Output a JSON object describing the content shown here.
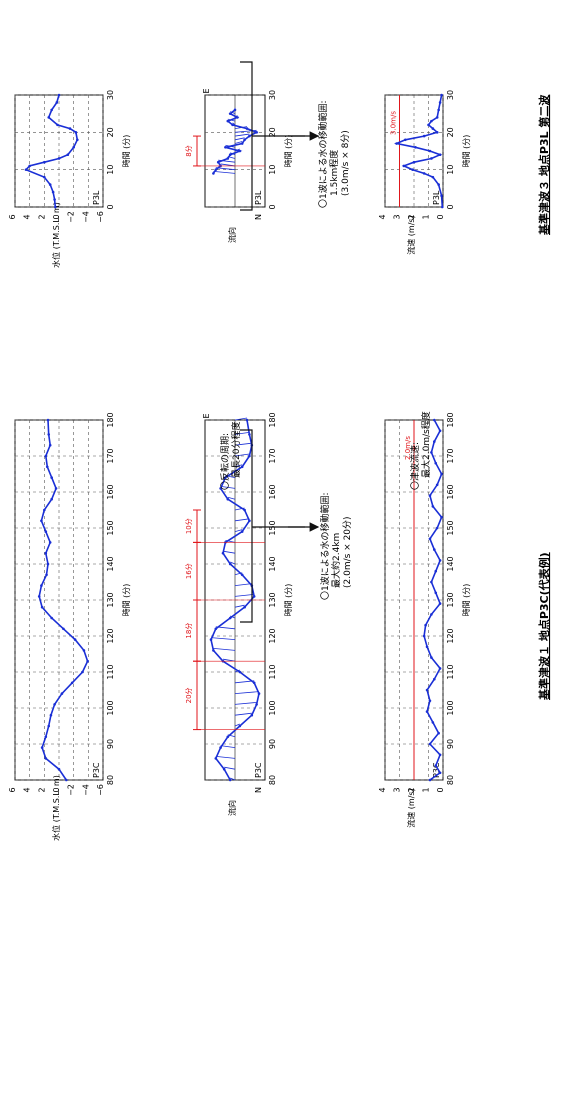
{
  "captions": {
    "case1": "基準津波１ 地点P3C(代表例)",
    "case3": "基準津波３ 地点P3L 第二波"
  },
  "notes": {
    "case1": {
      "reversal_1": "〇反転の周期:",
      "reversal_2": "最長20分程度",
      "speed_1": "〇津波流速:",
      "speed_2": "最大2.0m/s程度",
      "move_1": "〇1波による水の移動範囲:",
      "move_2": "最大約2.4km",
      "move_3": "(2.0m/s × 20分)"
    },
    "case3": {
      "move_1": "〇1波による水の移動範囲:",
      "move_2": "1.5km程度",
      "move_3": "(3.0m/s × 8分)"
    }
  },
  "colors": {
    "line": "#1a2fd6",
    "red": "#e0161b",
    "axis": "#111111",
    "grid": "#555555"
  },
  "chart_data": [
    {
      "id": "p3c-water-level",
      "type": "line",
      "title": "P3C",
      "xlabel": "時間 (分)",
      "ylabel": "水位 (T.M.S.L. m)",
      "xlim": [
        80,
        180
      ],
      "ylim": [
        -6,
        6
      ],
      "xticks": [
        80,
        90,
        100,
        110,
        120,
        130,
        140,
        150,
        160,
        170,
        180
      ],
      "yticks": [
        -6,
        -4,
        -2,
        0,
        2,
        4,
        6
      ],
      "x": [
        80,
        83,
        86,
        89,
        92,
        95,
        98,
        101,
        104,
        107,
        110,
        113,
        116,
        119,
        122,
        125,
        128,
        131,
        134,
        137,
        140,
        143,
        146,
        149,
        152,
        155,
        158,
        161,
        164,
        167,
        170,
        173,
        176,
        180
      ],
      "y": [
        -1.0,
        0.0,
        1.8,
        2.3,
        1.8,
        1.4,
        1.1,
        0.6,
        -0.4,
        -1.8,
        -3.2,
        -3.9,
        -3.4,
        -2.2,
        -0.6,
        1.0,
        2.3,
        2.7,
        2.4,
        1.7,
        1.5,
        1.8,
        1.2,
        1.8,
        2.4,
        2.0,
        1.0,
        0.4,
        1.0,
        1.6,
        1.8,
        1.2,
        1.4,
        1.5
      ]
    },
    {
      "id": "p3c-flow-direction",
      "type": "line",
      "title": "P3C",
      "xlabel": "時間 (分)",
      "ylabel": "流向",
      "xlim": [
        80,
        180
      ],
      "xticks": [
        80,
        90,
        100,
        110,
        120,
        130,
        140,
        150,
        160,
        170,
        180
      ],
      "yticklabels": [
        "N",
        "E"
      ],
      "x": [
        80,
        83,
        86,
        89,
        92,
        95,
        98,
        101,
        104,
        107,
        110,
        113,
        116,
        119,
        122,
        125,
        128,
        131,
        134,
        137,
        140,
        143,
        146,
        149,
        152,
        155,
        158,
        161,
        164,
        167,
        170,
        173,
        176,
        180
      ],
      "y": [
        0.2,
        0.45,
        0.8,
        0.6,
        0.3,
        -0.2,
        -0.7,
        -0.9,
        -1.0,
        -0.8,
        -0.2,
        0.5,
        0.9,
        1.0,
        0.8,
        0.2,
        -0.4,
        -0.8,
        -0.7,
        -0.3,
        0.2,
        0.5,
        0.4,
        -0.3,
        -0.6,
        -0.4,
        0.3,
        0.6,
        0.4,
        -0.3,
        -0.6,
        -0.7,
        -0.6,
        -0.5
      ],
      "annotations": [
        "20分",
        "18分",
        "16分",
        "10分"
      ],
      "annotation_spans": [
        [
          94,
          113
        ],
        [
          113,
          130
        ],
        [
          130,
          146
        ],
        [
          146,
          155
        ]
      ]
    },
    {
      "id": "p3c-flow-speed",
      "type": "line",
      "title": "P3C",
      "xlabel": "時間 (分)",
      "ylabel": "流速 (m/s)",
      "xlim": [
        80,
        180
      ],
      "ylim": [
        0,
        4
      ],
      "xticks": [
        80,
        90,
        100,
        110,
        120,
        130,
        140,
        150,
        160,
        170,
        180
      ],
      "yticks": [
        0,
        1,
        2,
        3,
        4
      ],
      "threshold": 2.0,
      "threshold_label": "2.0m/s",
      "x": [
        80,
        82,
        84,
        87,
        90,
        93,
        96,
        99,
        102,
        105,
        108,
        111,
        114,
        117,
        120,
        123,
        126,
        129,
        132,
        135,
        138,
        141,
        144,
        147,
        150,
        153,
        156,
        159,
        162,
        165,
        168,
        171,
        174,
        177,
        180
      ],
      "y": [
        0.9,
        0.2,
        0.5,
        0.2,
        0.9,
        0.3,
        0.7,
        1.1,
        0.9,
        1.1,
        0.6,
        0.2,
        0.8,
        1.1,
        1.3,
        1.2,
        0.8,
        0.2,
        0.5,
        0.8,
        0.5,
        0.2,
        0.6,
        0.9,
        0.4,
        0.1,
        0.7,
        0.9,
        0.4,
        0.1,
        0.5,
        0.8,
        0.6,
        0.2,
        0.6
      ]
    },
    {
      "id": "p3l-water-level",
      "type": "line",
      "title": "P3L",
      "xlabel": "時間 (分)",
      "ylabel": "水位 (T.M.S.L. m)",
      "xlim": [
        0,
        30
      ],
      "ylim": [
        -6,
        6
      ],
      "xticks": [
        0,
        10,
        20,
        30
      ],
      "yticks": [
        -6,
        -4,
        -2,
        0,
        2,
        4,
        6
      ],
      "x": [
        0,
        2,
        4,
        6,
        8,
        10,
        11,
        12,
        13,
        14,
        16,
        18,
        20,
        21,
        22,
        24,
        26,
        28,
        30
      ],
      "y": [
        0.5,
        0.6,
        0.8,
        1.2,
        2.0,
        4.5,
        4.0,
        2.0,
        0.0,
        -1.2,
        -2.0,
        -2.5,
        -2.3,
        -1.5,
        0.2,
        1.4,
        1.0,
        0.3,
        0.0
      ]
    },
    {
      "id": "p3l-flow-direction",
      "type": "line",
      "title": "P3L",
      "xlabel": "時間 (分)",
      "ylabel": "流向",
      "xlim": [
        0,
        30
      ],
      "xticks": [
        0,
        10,
        20,
        30
      ],
      "yticklabels": [
        "N",
        "E"
      ],
      "x": [
        9,
        10,
        11,
        12,
        13,
        14,
        15,
        16,
        17,
        18,
        19,
        20,
        21,
        22,
        23,
        24,
        25,
        26
      ],
      "y": [
        0.9,
        0.8,
        0.6,
        0.7,
        0.3,
        0.2,
        -0.2,
        0.4,
        -0.3,
        -0.4,
        -0.6,
        -0.9,
        -0.5,
        0.1,
        0.3,
        -0.1,
        0.2,
        0.0
      ],
      "annotations": [
        "8分"
      ],
      "annotation_spans": [
        [
          11,
          19
        ]
      ]
    },
    {
      "id": "p3l-flow-speed",
      "type": "line",
      "title": "P3L",
      "xlabel": "時間 (分)",
      "ylabel": "流速 (m/s)",
      "xlim": [
        0,
        30
      ],
      "ylim": [
        0,
        4
      ],
      "xticks": [
        0,
        10,
        20,
        30
      ],
      "yticks": [
        0,
        1,
        2,
        3,
        4
      ],
      "threshold": 3.0,
      "threshold_label": "3.0m/s",
      "x": [
        0,
        3,
        6,
        8,
        9,
        10,
        11,
        12,
        13,
        14,
        15,
        16,
        17,
        18,
        19,
        20,
        21,
        22,
        23,
        24,
        26,
        28,
        30
      ],
      "y": [
        0.05,
        0.1,
        0.3,
        0.7,
        1.3,
        2.1,
        2.7,
        2.0,
        0.8,
        0.2,
        0.9,
        1.9,
        3.2,
        2.6,
        1.3,
        0.4,
        0.7,
        1.0,
        0.8,
        0.4,
        0.3,
        0.2,
        0.1
      ]
    }
  ]
}
